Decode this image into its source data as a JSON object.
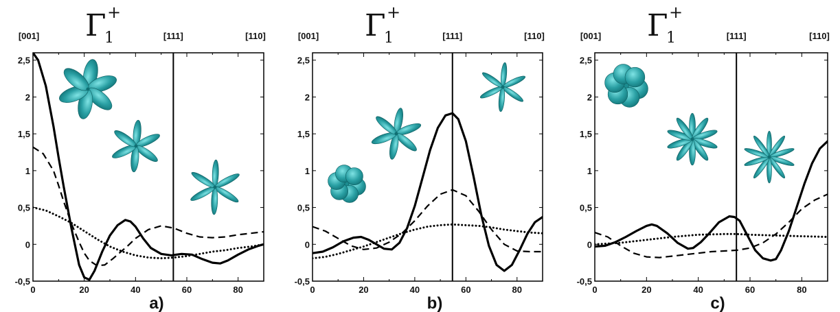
{
  "colors": {
    "orbital": "#2aa0a4",
    "orbital_dark": "#0f6f73",
    "line": "#000000"
  },
  "chart_data": [
    {
      "type": "line",
      "panel_label": "a)",
      "title": {
        "symbol": "Γ",
        "subscript": "1",
        "superscript": "+"
      },
      "top_labels": [
        "[001]",
        "[111]",
        "[110]"
      ],
      "xlim": [
        0,
        90
      ],
      "ylim": [
        -0.5,
        2.6
      ],
      "xticks": [
        "0",
        "20",
        "40",
        "60",
        "80"
      ],
      "yticks": [
        "-0,5",
        "0",
        "0,5",
        "1",
        "1,5",
        "2",
        "2,5"
      ],
      "vline_x": 54.74,
      "series": [
        {
          "style": "solid",
          "x": [
            0,
            2,
            5,
            8,
            10,
            12,
            15,
            18,
            20,
            22,
            24,
            27,
            30,
            33,
            36,
            38,
            40,
            43,
            46,
            50,
            54,
            58,
            62,
            66,
            70,
            73,
            76,
            80,
            84,
            88,
            90
          ],
          "y": [
            2.6,
            2.5,
            2.15,
            1.6,
            1.18,
            0.78,
            0.22,
            -0.28,
            -0.45,
            -0.48,
            -0.36,
            -0.1,
            0.12,
            0.26,
            0.33,
            0.31,
            0.24,
            0.08,
            -0.05,
            -0.13,
            -0.15,
            -0.13,
            -0.14,
            -0.2,
            -0.25,
            -0.26,
            -0.22,
            -0.14,
            -0.07,
            -0.02,
            0.0
          ]
        },
        {
          "style": "dashed",
          "x": [
            0,
            4,
            8,
            10,
            12,
            15,
            18,
            20,
            22,
            25,
            28,
            31,
            34,
            37,
            40,
            45,
            50,
            55,
            60,
            65,
            70,
            75,
            80,
            85,
            90
          ],
          "y": [
            1.32,
            1.23,
            1.0,
            0.8,
            0.58,
            0.28,
            0.03,
            -0.12,
            -0.22,
            -0.29,
            -0.28,
            -0.2,
            -0.11,
            -0.02,
            0.08,
            0.2,
            0.25,
            0.22,
            0.15,
            0.1,
            0.09,
            0.1,
            0.13,
            0.15,
            0.17
          ]
        },
        {
          "style": "dotted",
          "x": [
            0,
            5,
            10,
            15,
            20,
            25,
            30,
            35,
            40,
            45,
            50,
            55,
            60,
            65,
            70,
            75,
            80,
            85,
            90
          ],
          "y": [
            0.5,
            0.46,
            0.38,
            0.29,
            0.18,
            0.07,
            -0.03,
            -0.1,
            -0.15,
            -0.18,
            -0.19,
            -0.18,
            -0.16,
            -0.13,
            -0.1,
            -0.08,
            -0.05,
            -0.03,
            0.0
          ]
        }
      ]
    },
    {
      "type": "line",
      "panel_label": "b)",
      "title": {
        "symbol": "Γ",
        "subscript": "1",
        "superscript": "+"
      },
      "top_labels": [
        "[001]",
        "[111]",
        "[110]"
      ],
      "xlim": [
        0,
        90
      ],
      "ylim": [
        -0.5,
        2.6
      ],
      "xticks": [
        "0",
        "20",
        "40",
        "60",
        "80"
      ],
      "yticks": [
        "-0,5",
        "0",
        "0,5",
        "1",
        "1,5",
        "2",
        "2,5"
      ],
      "vline_x": 54.74,
      "series": [
        {
          "style": "solid",
          "x": [
            0,
            4,
            8,
            12,
            16,
            19,
            22,
            25,
            28,
            31,
            34,
            37,
            40,
            43,
            46,
            49,
            52,
            54.74,
            57,
            60,
            63,
            66,
            69,
            72,
            75,
            78,
            81,
            84,
            87,
            90
          ],
          "y": [
            -0.12,
            -0.1,
            -0.04,
            0.04,
            0.09,
            0.1,
            0.06,
            0.0,
            -0.06,
            -0.07,
            0.02,
            0.22,
            0.52,
            0.9,
            1.28,
            1.58,
            1.75,
            1.78,
            1.7,
            1.4,
            0.92,
            0.4,
            -0.02,
            -0.28,
            -0.36,
            -0.28,
            -0.08,
            0.14,
            0.3,
            0.37
          ]
        },
        {
          "style": "dashed",
          "x": [
            0,
            5,
            10,
            15,
            20,
            25,
            30,
            35,
            40,
            45,
            50,
            54.74,
            60,
            65,
            70,
            75,
            80,
            85,
            90
          ],
          "y": [
            0.24,
            0.18,
            0.08,
            -0.02,
            -0.07,
            -0.05,
            0.03,
            0.15,
            0.32,
            0.52,
            0.68,
            0.74,
            0.66,
            0.45,
            0.2,
            0.0,
            -0.09,
            -0.1,
            -0.1
          ]
        },
        {
          "style": "dotted",
          "x": [
            0,
            5,
            10,
            15,
            20,
            25,
            30,
            35,
            40,
            45,
            50,
            54.74,
            60,
            65,
            70,
            75,
            80,
            85,
            90
          ],
          "y": [
            -0.19,
            -0.17,
            -0.13,
            -0.08,
            -0.03,
            0.03,
            0.09,
            0.15,
            0.2,
            0.24,
            0.26,
            0.27,
            0.26,
            0.25,
            0.23,
            0.2,
            0.18,
            0.16,
            0.15
          ]
        }
      ]
    },
    {
      "type": "line",
      "panel_label": "c)",
      "title": {
        "symbol": "Γ",
        "subscript": "1",
        "superscript": "+"
      },
      "top_labels": [
        "[001]",
        "[111]",
        "[110]"
      ],
      "xlim": [
        0,
        90
      ],
      "ylim": [
        -0.5,
        2.6
      ],
      "xticks": [
        "0",
        "20",
        "40",
        "60",
        "80"
      ],
      "yticks": [
        "-0,5",
        "0",
        "0,5",
        "1",
        "1,5",
        "2",
        "2,5"
      ],
      "vline_x": 54.74,
      "series": [
        {
          "style": "solid",
          "x": [
            0,
            4,
            8,
            12,
            16,
            20,
            22,
            24,
            28,
            32,
            36,
            38,
            41,
            44,
            48,
            52,
            54,
            56,
            59,
            62,
            65,
            68,
            70,
            72,
            75,
            78,
            81,
            84,
            87,
            90
          ],
          "y": [
            -0.03,
            -0.02,
            0.03,
            0.1,
            0.18,
            0.25,
            0.27,
            0.25,
            0.15,
            0.02,
            -0.06,
            -0.05,
            0.03,
            0.14,
            0.3,
            0.38,
            0.37,
            0.32,
            0.12,
            -0.08,
            -0.19,
            -0.22,
            -0.2,
            -0.08,
            0.18,
            0.5,
            0.82,
            1.1,
            1.3,
            1.4
          ]
        },
        {
          "style": "dashed",
          "x": [
            0,
            5,
            10,
            15,
            20,
            25,
            30,
            35,
            40,
            45,
            50,
            55,
            60,
            65,
            70,
            75,
            80,
            85,
            90
          ],
          "y": [
            0.16,
            0.1,
            -0.02,
            -0.12,
            -0.17,
            -0.18,
            -0.16,
            -0.14,
            -0.12,
            -0.1,
            -0.09,
            -0.08,
            -0.05,
            0.02,
            0.14,
            0.3,
            0.48,
            0.6,
            0.68
          ]
        },
        {
          "style": "dotted",
          "x": [
            0,
            10,
            20,
            30,
            40,
            50,
            55,
            60,
            70,
            80,
            90
          ],
          "y": [
            0.0,
            0.02,
            0.06,
            0.1,
            0.13,
            0.14,
            0.14,
            0.13,
            0.12,
            0.11,
            0.1
          ]
        }
      ]
    }
  ]
}
